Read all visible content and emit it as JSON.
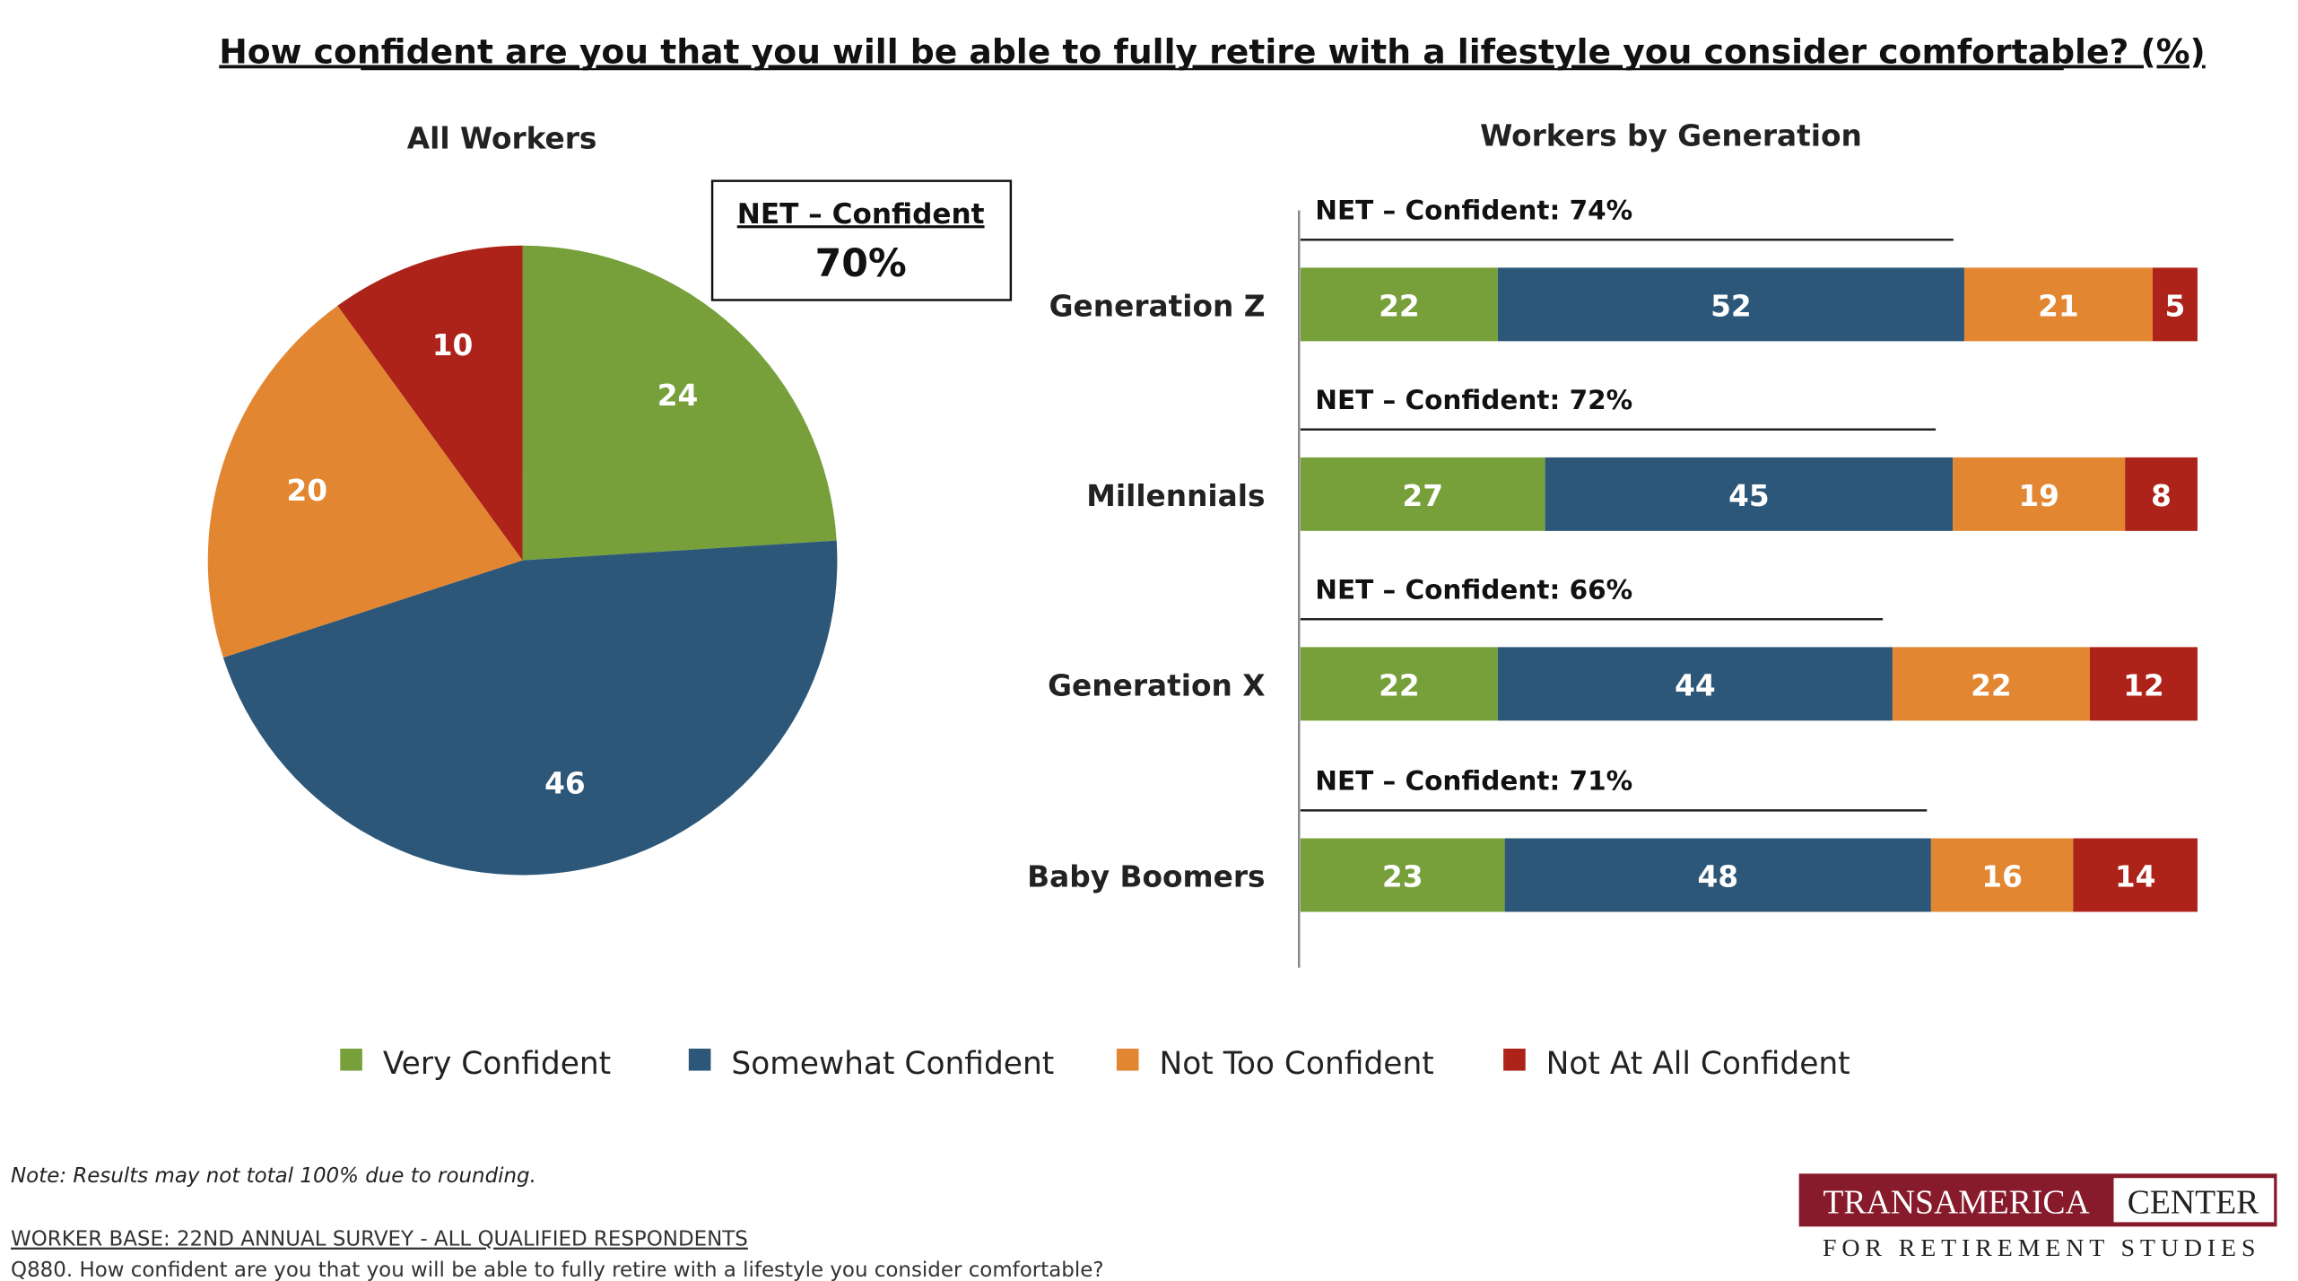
{
  "chart_data": [
    {
      "type": "pie",
      "title": "All Workers",
      "categories": [
        "Very Confident",
        "Somewhat Confident",
        "Not Too Confident",
        "Not At All Confident"
      ],
      "values": [
        24,
        46,
        20,
        10
      ],
      "net_label": "NET – Confident",
      "net_value": "70%"
    },
    {
      "type": "bar",
      "orientation": "horizontal",
      "stacked": true,
      "title": "Workers by Generation",
      "categories": [
        "Generation Z",
        "Millennials",
        "Generation X",
        "Baby Boomers"
      ],
      "series": [
        {
          "name": "Very Confident",
          "values": [
            22,
            27,
            22,
            23
          ]
        },
        {
          "name": "Somewhat Confident",
          "values": [
            52,
            45,
            44,
            48
          ]
        },
        {
          "name": "Not Too Confident",
          "values": [
            21,
            19,
            22,
            16
          ]
        },
        {
          "name": "Not At All Confident",
          "values": [
            5,
            8,
            12,
            14
          ]
        }
      ],
      "net_labels": [
        "NET – Confident: 74%",
        "NET – Confident: 72%",
        "NET – Confident: 66%",
        "NET – Confident: 71%"
      ],
      "net_values": [
        74,
        72,
        66,
        71
      ]
    }
  ],
  "title": "How confident are you that you will be able to fully retire with a lifestyle you consider comfortable? (%)",
  "legend": [
    "Very Confident",
    "Somewhat Confident",
    "Not Too Confident",
    "Not At All Confident"
  ],
  "colors": [
    "#77a03b",
    "#2c5778",
    "#e28632",
    "#ae2319"
  ],
  "note": "Note: Results may not total 100% due to rounding.",
  "base": "WORKER BASE:  22ND ANNUAL SURVEY - ALL QUALIFIED RESPONDENTS",
  "question": "Q880. How confident are you that you will be able to fully retire with a lifestyle you consider comfortable?",
  "logo": {
    "top_left": "TRANSAMERICA",
    "top_right": "CENTER",
    "bottom": "FOR RETIREMENT STUDIES"
  }
}
